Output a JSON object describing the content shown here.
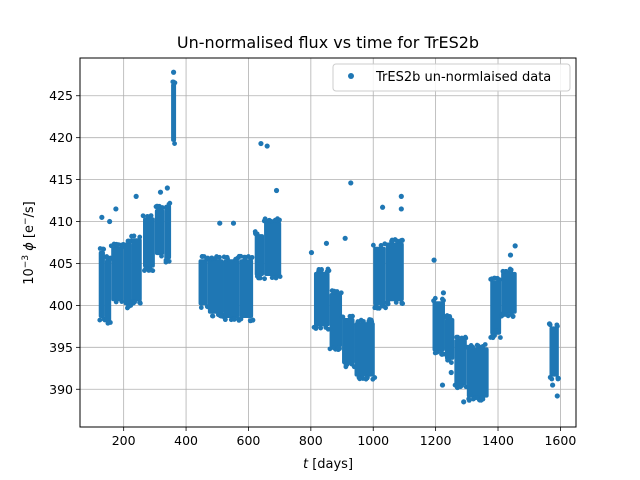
{
  "chart_data": {
    "type": "scatter",
    "title": "Un-normalised flux vs time for TrES2b",
    "xlabel": "t [days]",
    "ylabel": "10⁻³ ϕ [e⁻/s]",
    "xlim": [
      60,
      1650
    ],
    "ylim": [
      385.5,
      429.5
    ],
    "xticks": [
      200,
      400,
      600,
      800,
      1000,
      1200,
      1400,
      1600
    ],
    "yticks": [
      390,
      395,
      400,
      405,
      410,
      415,
      420,
      425
    ],
    "grid": true,
    "legend_position": "top-right",
    "color": "#1f77b4",
    "series": [
      {
        "name": "TrES2b un-normlaised data",
        "segments": [
          {
            "x": [
              120,
              140
            ],
            "y": [
              398.5,
              406.5
            ]
          },
          {
            "x": [
              140,
              160
            ],
            "y": [
              398.0,
              405.5
            ]
          },
          {
            "x": [
              160,
              200
            ],
            "y": [
              400.5,
              407.0
            ]
          },
          {
            "x": [
              200,
              225
            ],
            "y": [
              400.0,
              407.5
            ]
          },
          {
            "x": [
              225,
              258
            ],
            "y": [
              400.5,
              408.0
            ]
          },
          {
            "x": [
              262,
              300
            ],
            "y": [
              404.5,
              410.5
            ]
          },
          {
            "x": [
              300,
              330
            ],
            "y": [
              406.0,
              411.5
            ]
          },
          {
            "x": [
              330,
              352
            ],
            "y": [
              405.5,
              412.0
            ]
          },
          {
            "x": [
              352,
              368
            ],
            "y": [
              419.5,
              426.5
            ]
          },
          {
            "x": [
              440,
              470
            ],
            "y": [
              400.0,
              405.5
            ]
          },
          {
            "x": [
              470,
              520
            ],
            "y": [
              399.0,
              405.5
            ]
          },
          {
            "x": [
              520,
              570
            ],
            "y": [
              398.5,
              405.5
            ]
          },
          {
            "x": [
              570,
              615
            ],
            "y": [
              398.5,
              405.5
            ]
          },
          {
            "x": [
              620,
              650
            ],
            "y": [
              403.5,
              408.5
            ]
          },
          {
            "x": [
              650,
              705
            ],
            "y": [
              403.5,
              410.0
            ]
          },
          {
            "x": [
              810,
              860
            ],
            "y": [
              397.5,
              404.0
            ]
          },
          {
            "x": [
              860,
              900
            ],
            "y": [
              395.0,
              401.5
            ]
          },
          {
            "x": [
              900,
              940
            ],
            "y": [
              393.0,
              398.5
            ]
          },
          {
            "x": [
              940,
              1005
            ],
            "y": [
              391.5,
              398.0
            ]
          },
          {
            "x": [
              1000,
              1040
            ],
            "y": [
              400.0,
              407.0
            ]
          },
          {
            "x": [
              1040,
              1098
            ],
            "y": [
              400.5,
              407.5
            ]
          },
          {
            "x": [
              1190,
              1230
            ],
            "y": [
              394.5,
              400.5
            ]
          },
          {
            "x": [
              1230,
              1260
            ],
            "y": [
              393.5,
              398.5
            ]
          },
          {
            "x": [
              1260,
              1300
            ],
            "y": [
              390.5,
              396.0
            ]
          },
          {
            "x": [
              1300,
              1370
            ],
            "y": [
              389.0,
              395.0
            ]
          },
          {
            "x": [
              1375,
              1410
            ],
            "y": [
              396.5,
              403.0
            ]
          },
          {
            "x": [
              1410,
              1460
            ],
            "y": [
              399.0,
              404.0
            ]
          },
          {
            "x": [
              1565,
              1595
            ],
            "y": [
              391.5,
              397.5
            ]
          }
        ],
        "outliers": [
          {
            "x": 130,
            "y": 410.5
          },
          {
            "x": 155,
            "y": 410.0
          },
          {
            "x": 175,
            "y": 411.5
          },
          {
            "x": 240,
            "y": 413.0
          },
          {
            "x": 318,
            "y": 413.5
          },
          {
            "x": 340,
            "y": 414.0
          },
          {
            "x": 360,
            "y": 427.8
          },
          {
            "x": 508,
            "y": 409.8
          },
          {
            "x": 552,
            "y": 409.8
          },
          {
            "x": 640,
            "y": 419.3
          },
          {
            "x": 660,
            "y": 419.0
          },
          {
            "x": 690,
            "y": 413.7
          },
          {
            "x": 802,
            "y": 406.3
          },
          {
            "x": 928,
            "y": 414.6
          },
          {
            "x": 910,
            "y": 408.0
          },
          {
            "x": 850,
            "y": 407.4
          },
          {
            "x": 1030,
            "y": 411.7
          },
          {
            "x": 1090,
            "y": 413.0
          },
          {
            "x": 1090,
            "y": 411.5
          },
          {
            "x": 1195,
            "y": 405.4
          },
          {
            "x": 1225,
            "y": 401.5
          },
          {
            "x": 1250,
            "y": 392.0
          },
          {
            "x": 1290,
            "y": 388.5
          },
          {
            "x": 1310,
            "y": 389.5
          },
          {
            "x": 1350,
            "y": 389.0
          },
          {
            "x": 1440,
            "y": 406.0
          },
          {
            "x": 1455,
            "y": 407.1
          },
          {
            "x": 1395,
            "y": 397.0
          },
          {
            "x": 1590,
            "y": 389.2
          },
          {
            "x": 1575,
            "y": 390.5
          },
          {
            "x": 1565,
            "y": 397.8
          },
          {
            "x": 1222,
            "y": 390.5
          },
          {
            "x": 1270,
            "y": 390.2
          }
        ]
      }
    ]
  }
}
